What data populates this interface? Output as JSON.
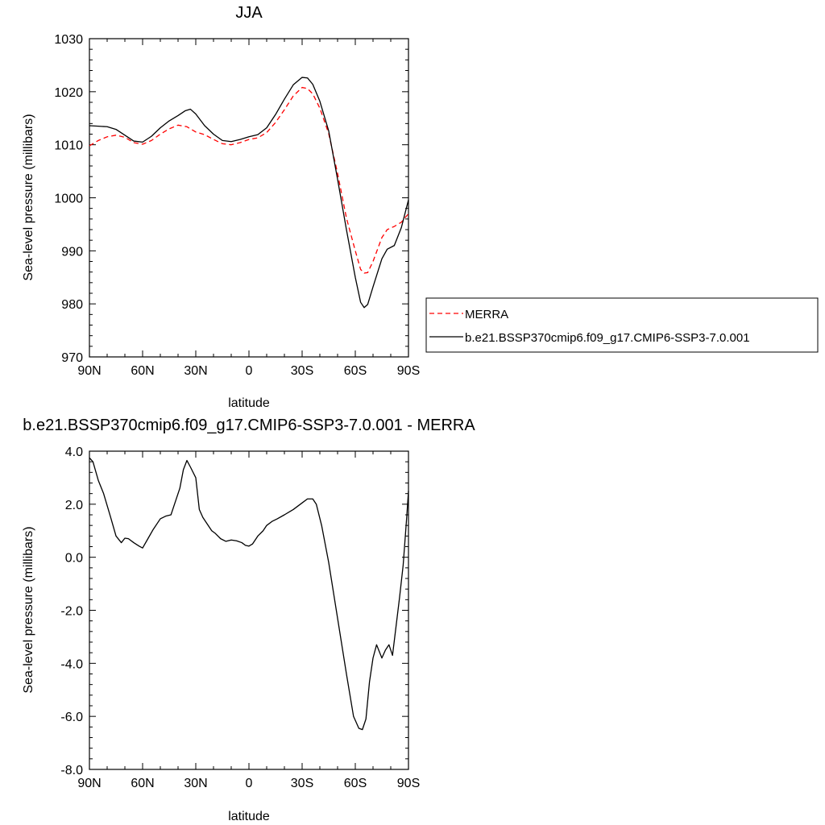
{
  "chart_data": [
    {
      "type": "line",
      "title": "JJA",
      "xlabel": "latitude",
      "ylabel": "Sea-level pressure (millibars)",
      "xlim": [
        90,
        -90
      ],
      "ylim": [
        970,
        1030
      ],
      "x_ticks": [
        {
          "value": 90,
          "label": "90N"
        },
        {
          "value": 60,
          "label": "60N"
        },
        {
          "value": 30,
          "label": "30N"
        },
        {
          "value": 0,
          "label": "0"
        },
        {
          "value": -30,
          "label": "30S"
        },
        {
          "value": -60,
          "label": "60S"
        },
        {
          "value": -90,
          "label": "90S"
        }
      ],
      "y_ticks": [
        {
          "value": 1030,
          "label": "1030"
        },
        {
          "value": 1020,
          "label": "1020"
        },
        {
          "value": 1010,
          "label": "1010"
        },
        {
          "value": 1000,
          "label": "1000"
        },
        {
          "value": 990,
          "label": "990"
        },
        {
          "value": 980,
          "label": "980"
        },
        {
          "value": 970,
          "label": "970"
        }
      ],
      "legend": "right, outside",
      "series": [
        {
          "name": "MERRA",
          "color": "#ff0000",
          "style": "dashed",
          "points": [
            [
              90,
              1009.8
            ],
            [
              85,
              1010.8
            ],
            [
              80,
              1011.5
            ],
            [
              75,
              1011.8
            ],
            [
              70,
              1011.4
            ],
            [
              65,
              1010.4
            ],
            [
              60,
              1010.1
            ],
            [
              55,
              1010.8
            ],
            [
              50,
              1012.0
            ],
            [
              45,
              1013.0
            ],
            [
              40,
              1013.7
            ],
            [
              35,
              1013.4
            ],
            [
              30,
              1012.4
            ],
            [
              25,
              1011.9
            ],
            [
              20,
              1011.0
            ],
            [
              15,
              1010.2
            ],
            [
              10,
              1010.0
            ],
            [
              5,
              1010.4
            ],
            [
              0,
              1011.0
            ],
            [
              -5,
              1011.3
            ],
            [
              -10,
              1012.3
            ],
            [
              -15,
              1014.2
            ],
            [
              -20,
              1016.6
            ],
            [
              -25,
              1019.2
            ],
            [
              -30,
              1020.8
            ],
            [
              -33,
              1020.6
            ],
            [
              -36,
              1019.6
            ],
            [
              -40,
              1016.9
            ],
            [
              -45,
              1012.1
            ],
            [
              -50,
              1004.6
            ],
            [
              -55,
              996.2
            ],
            [
              -60,
              990.0
            ],
            [
              -63,
              986.5
            ],
            [
              -65,
              985.8
            ],
            [
              -67,
              985.9
            ],
            [
              -70,
              988.0
            ],
            [
              -75,
              992.5
            ],
            [
              -78,
              994.0
            ],
            [
              -82,
              994.6
            ],
            [
              -86,
              995.4
            ],
            [
              -90,
              997.0
            ]
          ]
        },
        {
          "name": "b.e21.BSSP370cmip6.f09_g17.CMIP6-SSP3-7.0.001",
          "color": "#000000",
          "style": "solid",
          "points": [
            [
              90,
              1013.6
            ],
            [
              85,
              1013.5
            ],
            [
              80,
              1013.4
            ],
            [
              75,
              1012.9
            ],
            [
              70,
              1011.8
            ],
            [
              65,
              1010.7
            ],
            [
              60,
              1010.5
            ],
            [
              55,
              1011.6
            ],
            [
              50,
              1013.2
            ],
            [
              45,
              1014.5
            ],
            [
              40,
              1015.5
            ],
            [
              36,
              1016.4
            ],
            [
              33,
              1016.7
            ],
            [
              30,
              1015.8
            ],
            [
              25,
              1013.6
            ],
            [
              20,
              1012.0
            ],
            [
              15,
              1010.8
            ],
            [
              10,
              1010.6
            ],
            [
              5,
              1011.0
            ],
            [
              0,
              1011.5
            ],
            [
              -5,
              1011.9
            ],
            [
              -10,
              1013.2
            ],
            [
              -15,
              1015.7
            ],
            [
              -20,
              1018.6
            ],
            [
              -25,
              1021.3
            ],
            [
              -30,
              1022.7
            ],
            [
              -33,
              1022.6
            ],
            [
              -36,
              1021.4
            ],
            [
              -40,
              1018.2
            ],
            [
              -45,
              1012.6
            ],
            [
              -50,
              1003.5
            ],
            [
              -55,
              994.0
            ],
            [
              -60,
              985.0
            ],
            [
              -63,
              980.3
            ],
            [
              -65,
              979.3
            ],
            [
              -67,
              979.9
            ],
            [
              -70,
              983.2
            ],
            [
              -75,
              988.5
            ],
            [
              -78,
              990.3
            ],
            [
              -82,
              991.0
            ],
            [
              -86,
              994.4
            ],
            [
              -90,
              999.6
            ]
          ]
        }
      ]
    },
    {
      "type": "line",
      "title": "b.e21.BSSP370cmip6.f09_g17.CMIP6-SSP3-7.0.001 - MERRA",
      "xlabel": "latitude",
      "ylabel": "Sea-level pressure (millibars)",
      "xlim": [
        90,
        -90
      ],
      "ylim": [
        -8,
        4
      ],
      "x_ticks": [
        {
          "value": 90,
          "label": "90N"
        },
        {
          "value": 60,
          "label": "60N"
        },
        {
          "value": 30,
          "label": "30N"
        },
        {
          "value": 0,
          "label": "0"
        },
        {
          "value": -30,
          "label": "30S"
        },
        {
          "value": -60,
          "label": "60S"
        },
        {
          "value": -90,
          "label": "90S"
        }
      ],
      "y_ticks": [
        {
          "value": 4,
          "label": "4.0"
        },
        {
          "value": 2,
          "label": "2.0"
        },
        {
          "value": 0,
          "label": "0.0"
        },
        {
          "value": -2,
          "label": "-2.0"
        },
        {
          "value": -4,
          "label": "-4.0"
        },
        {
          "value": -6,
          "label": "-6.0"
        },
        {
          "value": -8,
          "label": "-8.0"
        }
      ],
      "series": [
        {
          "color": "#000000",
          "style": "solid",
          "points": [
            [
              90,
              3.75
            ],
            [
              88,
              3.6
            ],
            [
              85,
              2.9
            ],
            [
              82,
              2.4
            ],
            [
              78,
              1.5
            ],
            [
              75,
              0.8
            ],
            [
              72,
              0.55
            ],
            [
              70,
              0.72
            ],
            [
              68,
              0.7
            ],
            [
              65,
              0.55
            ],
            [
              62,
              0.42
            ],
            [
              60,
              0.35
            ],
            [
              57,
              0.7
            ],
            [
              54,
              1.05
            ],
            [
              50,
              1.45
            ],
            [
              47,
              1.55
            ],
            [
              44,
              1.6
            ],
            [
              42,
              2.0
            ],
            [
              39,
              2.6
            ],
            [
              37,
              3.3
            ],
            [
              35,
              3.65
            ],
            [
              33,
              3.4
            ],
            [
              30,
              3.0
            ],
            [
              28,
              1.8
            ],
            [
              26,
              1.5
            ],
            [
              24,
              1.3
            ],
            [
              21,
              1.0
            ],
            [
              19,
              0.9
            ],
            [
              16,
              0.7
            ],
            [
              13,
              0.6
            ],
            [
              10,
              0.65
            ],
            [
              7,
              0.62
            ],
            [
              4,
              0.55
            ],
            [
              2,
              0.45
            ],
            [
              0,
              0.42
            ],
            [
              -2,
              0.5
            ],
            [
              -5,
              0.8
            ],
            [
              -8,
              1.0
            ],
            [
              -10,
              1.2
            ],
            [
              -13,
              1.35
            ],
            [
              -16,
              1.45
            ],
            [
              -20,
              1.6
            ],
            [
              -25,
              1.8
            ],
            [
              -30,
              2.05
            ],
            [
              -33,
              2.2
            ],
            [
              -36,
              2.2
            ],
            [
              -38,
              2.0
            ],
            [
              -41,
              1.2
            ],
            [
              -45,
              -0.2
            ],
            [
              -50,
              -2.3
            ],
            [
              -55,
              -4.4
            ],
            [
              -59,
              -6.0
            ],
            [
              -62,
              -6.45
            ],
            [
              -64,
              -6.5
            ],
            [
              -66,
              -6.1
            ],
            [
              -68,
              -4.7
            ],
            [
              -70,
              -3.8
            ],
            [
              -72,
              -3.3
            ],
            [
              -75,
              -3.8
            ],
            [
              -77,
              -3.5
            ],
            [
              -79,
              -3.3
            ],
            [
              -81,
              -3.7
            ],
            [
              -83,
              -2.6
            ],
            [
              -85,
              -1.5
            ],
            [
              -87,
              -0.3
            ],
            [
              -88,
              0.6
            ],
            [
              -89,
              1.5
            ],
            [
              -90,
              2.5
            ]
          ]
        }
      ]
    }
  ]
}
